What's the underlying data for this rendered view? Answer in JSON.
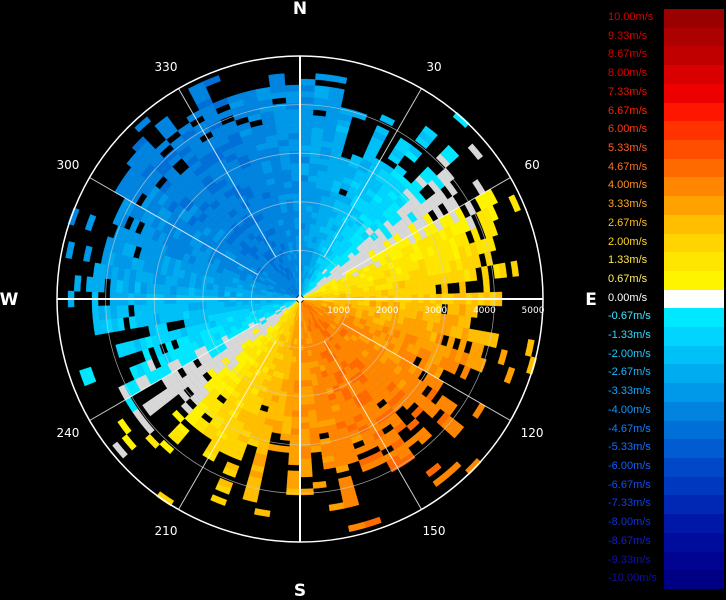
{
  "chart_data": {
    "type": "polar-ppi",
    "title": "",
    "cardinals": [
      "N",
      "E",
      "S",
      "W"
    ],
    "azimuth_labels": [
      "30",
      "60",
      "120",
      "150",
      "210",
      "240",
      "300",
      "330"
    ],
    "range_labels": [
      "1000",
      "2000",
      "3000",
      "4000",
      "5000"
    ],
    "range_max": 5000,
    "colorbar": {
      "unit": "m/s",
      "levels": [
        {
          "label": "10.00m/s",
          "color": "#9a0000",
          "label_color": "#d40000"
        },
        {
          "label": "9.33m/s",
          "color": "#ad0000",
          "label_color": "#d40000"
        },
        {
          "label": "8.67m/s",
          "color": "#c00000",
          "label_color": "#d40000"
        },
        {
          "label": "8.00m/s",
          "color": "#d80000",
          "label_color": "#e00000"
        },
        {
          "label": "7.33m/s",
          "color": "#ec0000",
          "label_color": "#ec1000"
        },
        {
          "label": "6.67m/s",
          "color": "#ff1600",
          "label_color": "#ff2200"
        },
        {
          "label": "6.00m/s",
          "color": "#ff3200",
          "label_color": "#ff3a10"
        },
        {
          "label": "5.33m/s",
          "color": "#ff4e00",
          "label_color": "#ff5a20"
        },
        {
          "label": "4.67m/s",
          "color": "#ff6a00",
          "label_color": "#ff7020"
        },
        {
          "label": "4.00m/s",
          "color": "#ff8600",
          "label_color": "#ff9020"
        },
        {
          "label": "3.33m/s",
          "color": "#ffa200",
          "label_color": "#ffa820"
        },
        {
          "label": "2.67m/s",
          "color": "#ffbe00",
          "label_color": "#ffc020"
        },
        {
          "label": "2.00m/s",
          "color": "#ffd400",
          "label_color": "#ffd820"
        },
        {
          "label": "1.33m/s",
          "color": "#ffe600",
          "label_color": "#ffe840"
        },
        {
          "label": "0.67m/s",
          "color": "#fff400",
          "label_color": "#fff060"
        },
        {
          "label": "0.00m/s",
          "color": "#ffffff",
          "label_color": "#ffffff"
        },
        {
          "label": "-0.67m/s",
          "color": "#00e8ff",
          "label_color": "#40e8ff"
        },
        {
          "label": "-1.33m/s",
          "color": "#00d4ff",
          "label_color": "#30d8ff"
        },
        {
          "label": "-2.00m/s",
          "color": "#00c0f8",
          "label_color": "#20c8ff"
        },
        {
          "label": "-2.67m/s",
          "color": "#00acf0",
          "label_color": "#18b8ff"
        },
        {
          "label": "-3.33m/s",
          "color": "#0098e8",
          "label_color": "#10a8ff"
        },
        {
          "label": "-4.00m/s",
          "color": "#0084e0",
          "label_color": "#1098ff"
        },
        {
          "label": "-4.67m/s",
          "color": "#0070d8",
          "label_color": "#1080ff"
        },
        {
          "label": "-5.33m/s",
          "color": "#005cd0",
          "label_color": "#1070ff"
        },
        {
          "label": "-6.00m/s",
          "color": "#0048c8",
          "label_color": "#1060ff"
        },
        {
          "label": "-6.67m/s",
          "color": "#0038c0",
          "label_color": "#1050f0"
        },
        {
          "label": "-7.33m/s",
          "color": "#0028b4",
          "label_color": "#1040e0"
        },
        {
          "label": "-8.00m/s",
          "color": "#0018a8",
          "label_color": "#1030d0"
        },
        {
          "label": "-8.67m/s",
          "color": "#000c9c",
          "label_color": "#1020c0"
        },
        {
          "label": "-9.33m/s",
          "color": "#000490",
          "label_color": "#1010b0"
        },
        {
          "label": "-10.00m/s",
          "color": "#000084",
          "label_color": "#1010a0"
        }
      ]
    },
    "grid": true
  }
}
